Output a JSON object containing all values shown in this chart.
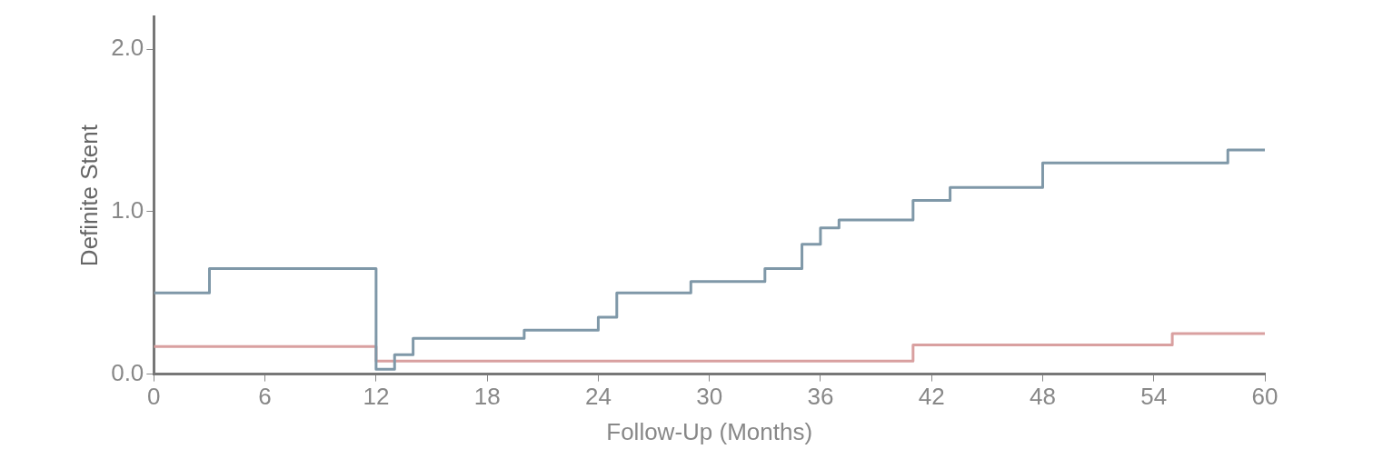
{
  "chart_data": {
    "type": "step",
    "xlabel": "Follow-Up (Months)",
    "ylabel": "Definite Stent",
    "xlim": [
      0,
      60
    ],
    "xticks": [
      0,
      6,
      12,
      18,
      24,
      30,
      36,
      42,
      48,
      54,
      60
    ],
    "ylim": [
      0,
      2.2
    ],
    "yticks": [
      {
        "value": 0,
        "label": "0.0"
      },
      {
        "value": 1,
        "label": "1.0"
      },
      {
        "value": 2,
        "label": "2.0"
      }
    ],
    "grid": false,
    "legend": false,
    "marker": "none",
    "series": [
      {
        "color": "#7f98a8",
        "x": [
          0,
          3,
          12,
          13,
          14,
          20,
          24,
          25,
          29,
          33,
          35,
          36,
          37,
          41,
          43,
          48,
          58,
          60
        ],
        "values": [
          0.5,
          0.65,
          0.03,
          0.12,
          0.22,
          0.27,
          0.35,
          0.5,
          0.57,
          0.65,
          0.8,
          0.9,
          0.95,
          1.07,
          1.15,
          1.3,
          1.38,
          1.38
        ]
      },
      {
        "color": "#d9a0a0",
        "x": [
          0,
          12,
          41,
          55,
          60
        ],
        "values": [
          0.17,
          0.08,
          0.18,
          0.25,
          0.25
        ]
      }
    ]
  }
}
